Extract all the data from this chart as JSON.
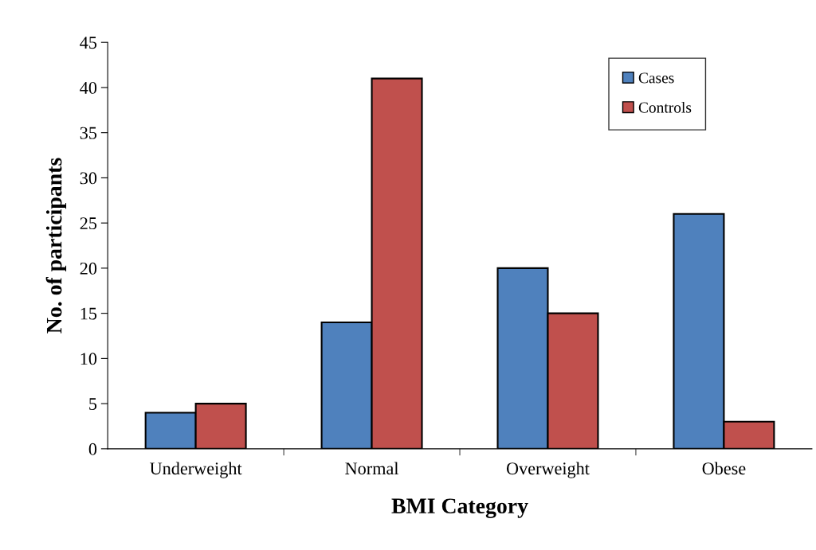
{
  "chart_data": {
    "type": "bar",
    "xlabel": "BMI Category",
    "ylabel": "No. of participants",
    "categories": [
      "Underweight",
      "Normal",
      "Overweight",
      "Obese"
    ],
    "series": [
      {
        "name": "Cases",
        "color": "#4f81bd",
        "values": [
          4,
          14,
          20,
          26
        ]
      },
      {
        "name": "Controls",
        "color": "#c0504d",
        "values": [
          5,
          41,
          15,
          3
        ]
      }
    ],
    "ylim": [
      0,
      45
    ],
    "yticks": [
      0,
      5,
      10,
      15,
      20,
      25,
      30,
      35,
      40,
      45
    ],
    "grid": false,
    "legend": "top right"
  }
}
